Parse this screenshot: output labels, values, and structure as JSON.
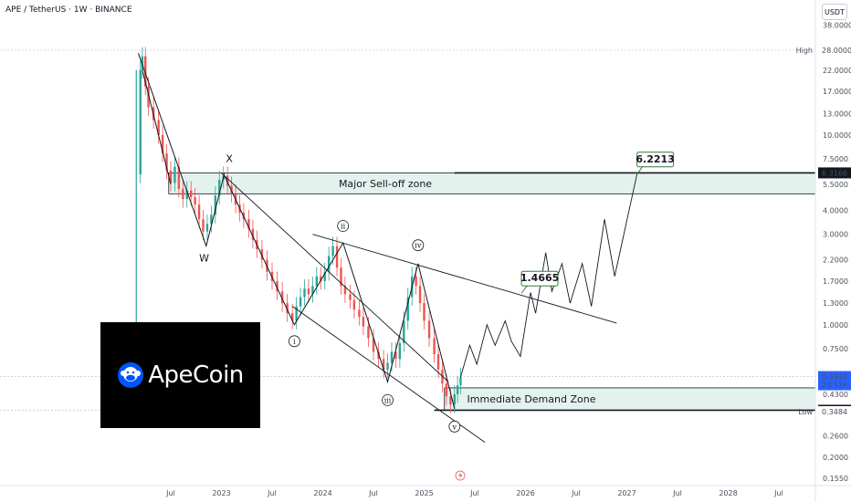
{
  "header": {
    "title": "APE / TetherUS · 1W · BINANCE",
    "currency_button": "USDT"
  },
  "logo": {
    "text": "ApeCoin",
    "icon": "ape-head-icon"
  },
  "colors": {
    "up": "#26a69a",
    "down": "#ef5350",
    "zone_fill": "#e4f2ee",
    "zone_stroke": "#131722",
    "sell_zone_text": "#d32f2f",
    "demand_zone_text": "#1e3fbf",
    "current_price_bg": "#2962ff"
  },
  "chart_data": {
    "type": "candlestick",
    "y_scale": "log",
    "x_axis": {
      "ticks": [
        "Jul",
        "2023",
        "Jul",
        "2024",
        "Jul",
        "2025",
        "Jul",
        "2026",
        "Jul",
        "2027",
        "Jul",
        "2028",
        "Jul"
      ]
    },
    "y_axis": {
      "ticks": [
        "38.0000",
        "28.0000",
        "22.0000",
        "17.0000",
        "13.0000",
        "10.0000",
        "7.5000",
        "5.5000",
        "4.0000",
        "3.0000",
        "2.2000",
        "1.7000",
        "1.3000",
        "1.0000",
        "0.7500",
        "0.4300",
        "0.3484",
        "0.2600",
        "0.2000",
        "0.1550"
      ]
    },
    "price_labels": {
      "high": {
        "label": "High",
        "value": "28.0000"
      },
      "low": {
        "label": "Low",
        "value": "0.3484"
      },
      "current": {
        "value": "0.5333",
        "countdown": "2d 12h"
      },
      "zone_top": "6.3166",
      "zone_bottom": "0.3543"
    },
    "zones": [
      {
        "name": "Major Sell-off zone",
        "top": 6.3166,
        "bottom": 4.9
      },
      {
        "name": "Immediate Demand Zone",
        "top": 0.465,
        "bottom": 0.3543
      }
    ],
    "wave_labels": [
      "X",
      "W",
      "i",
      "ii",
      "iii",
      "iv",
      "v"
    ],
    "targets": [
      "1.4665",
      "6.2213"
    ],
    "candles_summary": "APE/USDT weekly candles from ~Mar 2022 high near 28 down to ~0.35 in 2025"
  }
}
